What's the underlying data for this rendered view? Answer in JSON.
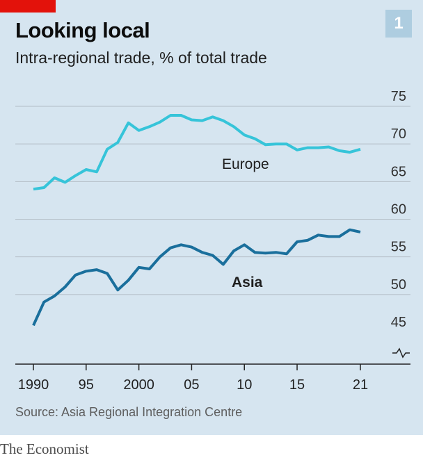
{
  "header": {
    "title": "Looking local",
    "subtitle": "Intra-regional trade, % of total trade",
    "badge": "1"
  },
  "source": "Source: Asia Regional Integration Centre",
  "footer": "The Economist",
  "colors": {
    "background": "#d6e5f0",
    "europe": "#36c4d9",
    "asia": "#1a6f9c",
    "brand_red": "#e3120b"
  },
  "chart_data": {
    "type": "line",
    "title": "Looking local",
    "subtitle": "Intra-regional trade, % of total trade",
    "x": [
      1990,
      1991,
      1992,
      1993,
      1994,
      1995,
      1996,
      1997,
      1998,
      1999,
      2000,
      2001,
      2002,
      2003,
      2004,
      2005,
      2006,
      2007,
      2008,
      2009,
      2010,
      2011,
      2012,
      2013,
      2014,
      2015,
      2016,
      2017,
      2018,
      2019,
      2020,
      2021
    ],
    "x_tick_values": [
      1990,
      1995,
      2000,
      2005,
      2010,
      2015,
      2021
    ],
    "x_tick_labels": [
      "1990",
      "95",
      "2000",
      "05",
      "10",
      "15",
      "21"
    ],
    "ylim": [
      45,
      75
    ],
    "y_ticks": [
      45,
      50,
      55,
      60,
      65,
      70,
      75
    ],
    "y_axis_position": "right",
    "axis_break": true,
    "grid": true,
    "series": [
      {
        "name": "Europe",
        "color": "#36c4d9",
        "values": [
          64.0,
          64.2,
          65.5,
          64.9,
          65.8,
          66.6,
          66.3,
          69.3,
          70.2,
          72.8,
          71.8,
          72.3,
          72.9,
          73.8,
          73.8,
          73.2,
          73.1,
          73.6,
          73.1,
          72.3,
          71.2,
          70.7,
          69.9,
          70.0,
          70.0,
          69.2,
          69.5,
          69.5,
          69.6,
          69.1,
          68.9,
          69.3
        ]
      },
      {
        "name": "Asia",
        "color": "#1a6f9c",
        "values": [
          45.9,
          49.0,
          49.8,
          51.0,
          52.6,
          53.1,
          53.3,
          52.8,
          50.6,
          51.9,
          53.6,
          53.4,
          55.0,
          56.2,
          56.6,
          56.3,
          55.6,
          55.2,
          54.0,
          55.8,
          56.6,
          55.6,
          55.5,
          55.6,
          55.4,
          57.0,
          57.2,
          57.9,
          57.7,
          57.7,
          58.6,
          58.3
        ]
      }
    ]
  }
}
